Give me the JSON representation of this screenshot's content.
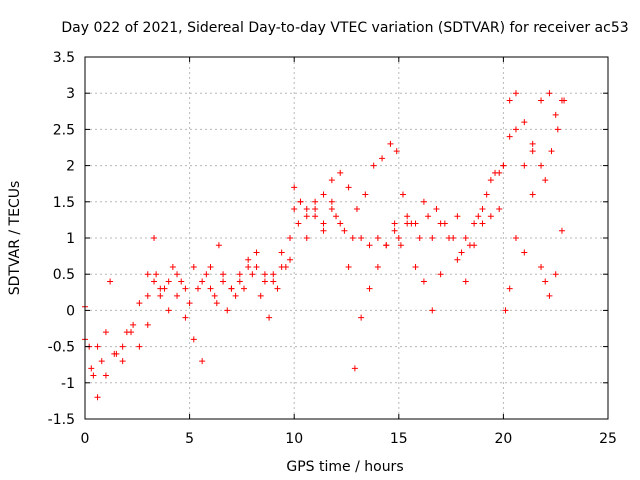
{
  "chart_data": {
    "type": "scatter",
    "title": "Day 022 of 2021, Sidereal Day-to-day VTEC variation (SDTVAR) for receiver ac53",
    "xlabel": "GPS time / hours",
    "ylabel": "SDTVAR / TECUs",
    "xlim": [
      0,
      25
    ],
    "ylim": [
      -1.5,
      3.5
    ],
    "xticks": [
      0,
      5,
      10,
      15,
      20,
      25
    ],
    "yticks": [
      -1.5,
      -1,
      -0.5,
      0,
      0.5,
      1,
      1.5,
      2,
      2.5,
      3,
      3.5
    ],
    "grid": true,
    "marker": "plus",
    "color": "#ff0000",
    "series": [
      {
        "x": [
          0.0,
          0.2,
          0.4,
          0.6,
          0.8,
          1.0,
          1.2,
          1.5,
          1.8,
          2.0,
          2.3,
          2.6,
          3.0,
          3.3,
          3.6,
          4.0,
          4.4,
          4.8,
          5.2,
          5.6,
          6.0,
          6.3,
          6.6,
          7.0,
          7.4,
          7.8,
          8.2,
          8.6,
          9.0,
          9.4,
          9.8,
          10.0,
          10.3,
          10.6,
          11.0,
          11.4,
          11.8,
          12.0,
          12.4,
          12.8,
          13.2,
          13.6,
          14.0,
          14.4,
          14.8,
          15.0,
          15.4,
          15.8,
          16.2,
          16.6,
          17.0,
          17.4,
          17.8,
          18.2,
          18.6,
          19.0,
          19.4,
          19.8,
          20.0,
          20.3,
          20.6,
          21.0,
          21.4,
          21.8,
          22.0,
          22.3,
          22.6,
          22.9
        ],
        "y": [
          0.05,
          -0.5,
          -0.9,
          -1.2,
          -0.7,
          -0.3,
          0.4,
          -0.6,
          -0.5,
          -0.3,
          -0.2,
          0.1,
          0.5,
          0.4,
          0.2,
          0.4,
          0.5,
          0.3,
          0.6,
          0.4,
          0.6,
          0.1,
          0.5,
          0.3,
          0.4,
          0.6,
          0.8,
          0.5,
          0.4,
          0.6,
          0.7,
          1.4,
          1.5,
          1.3,
          1.5,
          1.2,
          1.4,
          1.3,
          1.1,
          1.0,
          1.0,
          0.9,
          1.0,
          0.9,
          1.2,
          1.0,
          1.3,
          1.2,
          1.5,
          1.0,
          1.2,
          1.0,
          1.3,
          1.0,
          1.2,
          1.4,
          1.8,
          1.9,
          2.0,
          2.4,
          2.5,
          2.0,
          2.3,
          2.0,
          1.8,
          2.2,
          2.5,
          2.9
        ]
      },
      {
        "x": [
          0.0,
          0.3,
          0.6,
          1.0,
          1.4,
          1.8,
          2.2,
          2.6,
          3.0,
          3.3,
          3.6,
          4.0,
          4.4,
          4.8,
          5.2,
          5.6,
          6.0,
          6.4,
          6.8,
          7.2,
          7.6,
          8.0,
          8.4,
          8.8,
          9.2,
          9.6,
          10.0,
          10.3,
          10.6,
          11.0,
          11.4,
          11.8,
          12.2,
          12.6,
          12.9,
          13.2,
          13.6,
          14.0,
          14.4,
          14.8,
          15.1,
          15.4,
          15.8,
          16.2,
          16.6,
          17.0,
          17.4,
          17.8,
          18.2,
          18.6,
          19.0,
          19.4,
          19.8,
          20.1,
          20.3,
          20.6,
          21.0,
          21.4,
          21.8,
          22.0,
          22.2,
          22.5,
          22.8
        ],
        "y": [
          -0.4,
          -0.8,
          -0.5,
          -0.9,
          -0.6,
          -0.7,
          -0.3,
          -0.5,
          -0.2,
          1.0,
          0.3,
          0.0,
          0.2,
          -0.1,
          -0.4,
          -0.7,
          0.3,
          0.9,
          0.0,
          0.2,
          0.3,
          0.5,
          0.2,
          -0.1,
          0.3,
          0.6,
          1.7,
          1.5,
          1.0,
          1.4,
          1.6,
          1.8,
          1.2,
          0.6,
          -0.8,
          -0.1,
          0.3,
          0.6,
          0.9,
          1.1,
          0.9,
          1.2,
          0.6,
          0.4,
          0.0,
          0.5,
          1.0,
          0.7,
          0.4,
          0.9,
          1.2,
          1.3,
          1.4,
          0.0,
          0.3,
          1.0,
          0.8,
          1.6,
          0.6,
          0.4,
          0.2,
          0.5,
          1.1
        ]
      },
      {
        "x": [
          3.0,
          3.4,
          3.8,
          4.2,
          4.6,
          5.0,
          5.4,
          5.8,
          6.2,
          6.6,
          7.0,
          7.4,
          7.8,
          8.2,
          8.6,
          9.0,
          9.4,
          9.8,
          10.2,
          10.6,
          11.0,
          11.4,
          11.8,
          12.2,
          12.6,
          13.0,
          13.4,
          13.8,
          14.2,
          14.6,
          14.9,
          15.2,
          15.6,
          16.0,
          16.4,
          16.8,
          17.2,
          17.6,
          18.0,
          18.4,
          18.8,
          19.2,
          19.6,
          20.0,
          20.3,
          20.6,
          21.0,
          21.4,
          21.8,
          22.2,
          22.5,
          22.8
        ],
        "y": [
          0.2,
          0.5,
          0.3,
          0.6,
          0.4,
          0.1,
          0.3,
          0.5,
          0.2,
          0.4,
          0.3,
          0.5,
          0.7,
          0.6,
          0.4,
          0.5,
          0.8,
          1.0,
          1.2,
          1.4,
          1.3,
          1.1,
          1.5,
          1.9,
          1.7,
          1.4,
          1.6,
          2.0,
          2.1,
          2.3,
          2.2,
          1.6,
          1.2,
          1.0,
          1.3,
          1.4,
          1.2,
          1.0,
          0.8,
          0.9,
          1.3,
          1.6,
          1.9,
          2.0,
          2.9,
          3.0,
          2.6,
          2.2,
          2.9,
          3.0,
          2.7,
          2.9
        ]
      }
    ]
  }
}
